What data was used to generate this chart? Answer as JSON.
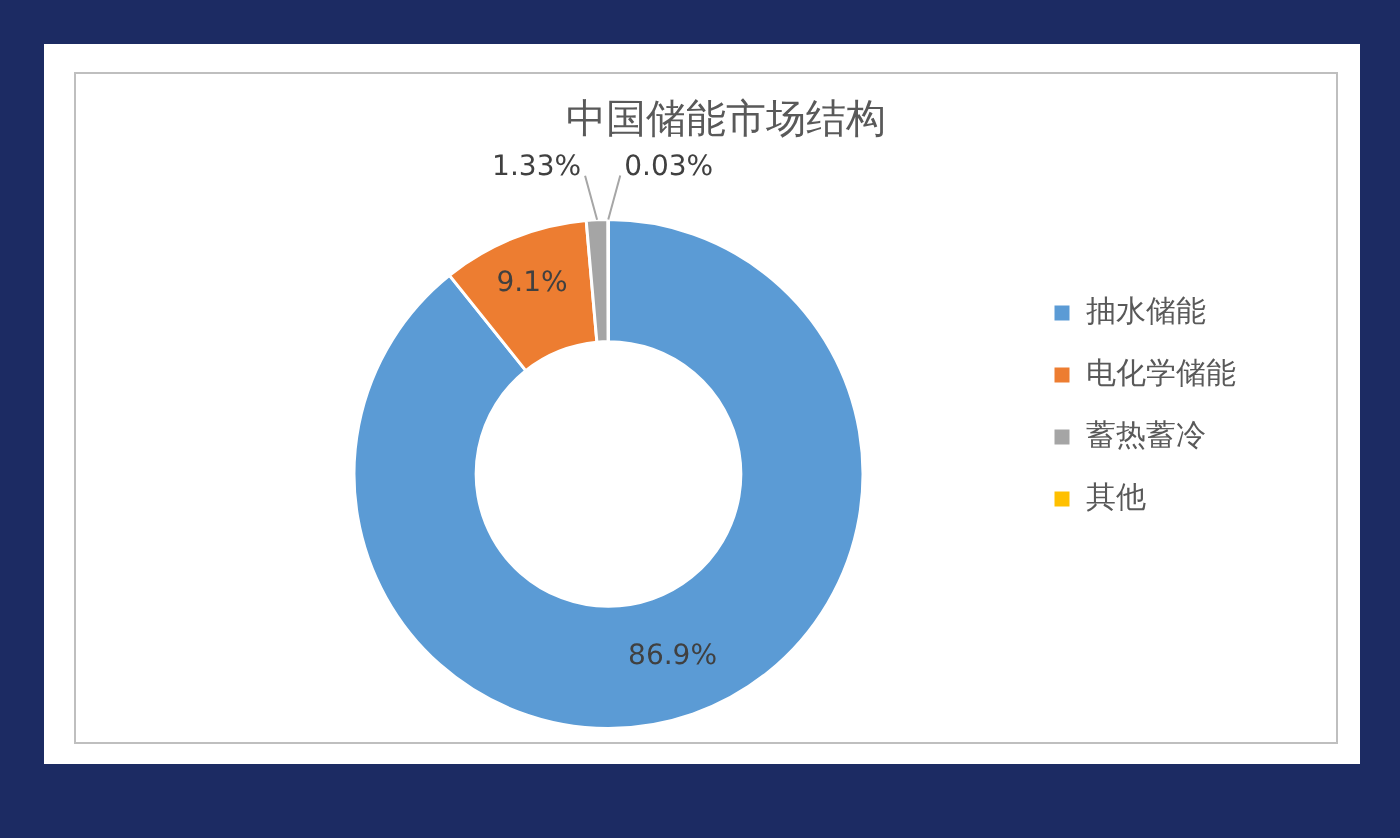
{
  "chart_data": {
    "type": "donut",
    "title": "中国储能市场结构",
    "categories": [
      "抽水储能",
      "电化学储能",
      "蓄热蓄冷",
      "其他"
    ],
    "values": [
      86.9,
      9.1,
      1.33,
      0.03
    ],
    "colors": [
      "#5b9bd5",
      "#ed7d31",
      "#a5a5a5",
      "#ffc000"
    ],
    "value_labels": [
      "86.9%",
      "9.1%",
      "1.33%",
      "0.03%"
    ],
    "legend": "right"
  }
}
